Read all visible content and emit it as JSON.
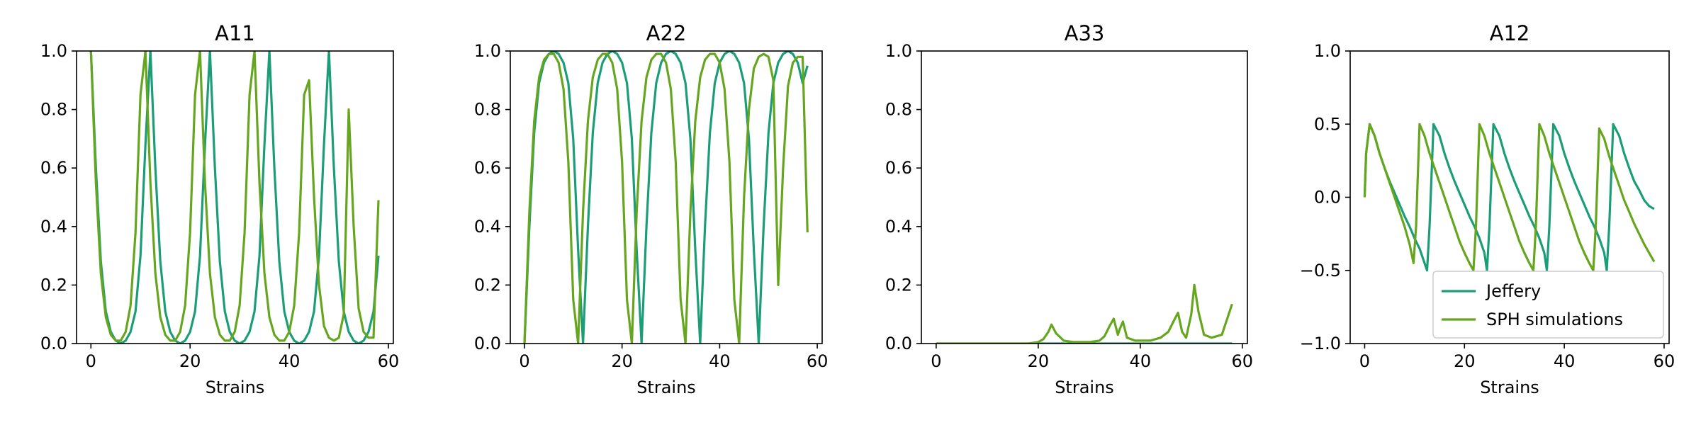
{
  "chart_data": [
    {
      "type": "line",
      "title": "A11",
      "xlabel": "Strains",
      "ylabel": "",
      "xlim": [
        -2.9,
        61
      ],
      "ylim": [
        0,
        1.0
      ],
      "xticks": [
        "0",
        "20",
        "40",
        "60"
      ],
      "yticks": [
        "0.0",
        "0.2",
        "0.4",
        "0.6",
        "0.8",
        "1.0"
      ],
      "series": [
        {
          "name": "Jeffery",
          "color": "#1b9e77",
          "x": [
            0,
            1,
            2,
            3,
            4,
            5,
            6,
            7,
            8,
            9,
            10,
            11,
            12,
            13,
            14,
            15,
            16,
            17,
            18,
            19,
            20,
            21,
            22,
            23,
            24,
            25,
            26,
            27,
            28,
            29,
            30,
            31,
            32,
            33,
            34,
            35,
            36,
            37,
            38,
            39,
            40,
            41,
            42,
            43,
            44,
            45,
            46,
            47,
            48,
            49,
            50,
            51,
            52,
            53,
            54,
            55,
            56,
            57,
            58
          ],
          "y": [
            1.0,
            0.6,
            0.28,
            0.11,
            0.04,
            0.01,
            0.0,
            0.01,
            0.04,
            0.11,
            0.3,
            0.68,
            1.0,
            0.6,
            0.28,
            0.11,
            0.04,
            0.01,
            0.0,
            0.01,
            0.04,
            0.11,
            0.3,
            0.68,
            1.0,
            0.6,
            0.28,
            0.11,
            0.04,
            0.01,
            0.0,
            0.01,
            0.04,
            0.11,
            0.3,
            0.68,
            1.0,
            0.6,
            0.28,
            0.11,
            0.04,
            0.01,
            0.0,
            0.01,
            0.04,
            0.11,
            0.3,
            0.68,
            1.0,
            0.6,
            0.28,
            0.11,
            0.04,
            0.01,
            0.0,
            0.01,
            0.04,
            0.11,
            0.3
          ]
        },
        {
          "name": "SPH simulations",
          "color": "#66a61e",
          "x": [
            0,
            1,
            2,
            3,
            4,
            5,
            6,
            7,
            8,
            9,
            10,
            11,
            12,
            13,
            14,
            15,
            16,
            17,
            18,
            19,
            20,
            21,
            22,
            23,
            24,
            25,
            26,
            27,
            28,
            29,
            30,
            31,
            32,
            33,
            34,
            35,
            36,
            37,
            38,
            39,
            40,
            41,
            42,
            43,
            44,
            45,
            46,
            47,
            48,
            49,
            50,
            51,
            52,
            53,
            54,
            55,
            56,
            57,
            58
          ],
          "y": [
            1.0,
            0.55,
            0.24,
            0.09,
            0.03,
            0.01,
            0.01,
            0.04,
            0.13,
            0.38,
            0.85,
            1.0,
            0.55,
            0.24,
            0.09,
            0.03,
            0.01,
            0.01,
            0.04,
            0.13,
            0.38,
            0.85,
            1.0,
            0.55,
            0.24,
            0.09,
            0.03,
            0.01,
            0.01,
            0.04,
            0.13,
            0.38,
            0.85,
            1.0,
            0.55,
            0.24,
            0.09,
            0.03,
            0.01,
            0.01,
            0.04,
            0.13,
            0.38,
            0.85,
            0.9,
            0.5,
            0.2,
            0.06,
            0.02,
            0.01,
            0.02,
            0.1,
            0.8,
            0.4,
            0.12,
            0.04,
            0.02,
            0.02,
            0.49
          ]
        }
      ]
    },
    {
      "type": "line",
      "title": "A22",
      "xlabel": "Strains",
      "ylabel": "",
      "xlim": [
        -2.9,
        61
      ],
      "ylim": [
        0,
        1.0
      ],
      "xticks": [
        "0",
        "20",
        "40",
        "60"
      ],
      "yticks": [
        "0.0",
        "0.2",
        "0.4",
        "0.6",
        "0.8",
        "1.0"
      ],
      "series": [
        {
          "name": "Jeffery",
          "color": "#1b9e77",
          "x": [
            0,
            1,
            2,
            3,
            4,
            5,
            6,
            7,
            8,
            9,
            10,
            11,
            12,
            13,
            14,
            15,
            16,
            17,
            18,
            19,
            20,
            21,
            22,
            23,
            24,
            25,
            26,
            27,
            28,
            29,
            30,
            31,
            32,
            33,
            34,
            35,
            36,
            37,
            38,
            39,
            40,
            41,
            42,
            43,
            44,
            45,
            46,
            47,
            48,
            49,
            50,
            51,
            52,
            53,
            54,
            55,
            56,
            57,
            58
          ],
          "y": [
            0.0,
            0.4,
            0.72,
            0.89,
            0.96,
            0.99,
            1.0,
            0.99,
            0.96,
            0.89,
            0.7,
            0.32,
            0.0,
            0.4,
            0.72,
            0.89,
            0.96,
            0.99,
            1.0,
            0.99,
            0.96,
            0.89,
            0.7,
            0.32,
            0.0,
            0.4,
            0.72,
            0.89,
            0.96,
            0.99,
            1.0,
            0.99,
            0.96,
            0.89,
            0.7,
            0.32,
            0.0,
            0.4,
            0.72,
            0.89,
            0.96,
            0.99,
            1.0,
            0.99,
            0.96,
            0.89,
            0.7,
            0.32,
            0.0,
            0.4,
            0.72,
            0.89,
            0.96,
            0.99,
            1.0,
            0.99,
            0.96,
            0.89,
            0.95
          ]
        },
        {
          "name": "SPH simulations",
          "color": "#66a61e",
          "x": [
            0,
            1,
            2,
            3,
            4,
            5,
            6,
            7,
            8,
            9,
            10,
            11,
            12,
            13,
            14,
            15,
            16,
            17,
            18,
            19,
            20,
            21,
            22,
            23,
            24,
            25,
            26,
            27,
            28,
            29,
            30,
            31,
            32,
            33,
            34,
            35,
            36,
            37,
            38,
            39,
            40,
            41,
            42,
            43,
            44,
            45,
            46,
            47,
            48,
            49,
            50,
            51,
            52,
            53,
            54,
            55,
            56,
            57,
            58
          ],
          "y": [
            0.0,
            0.45,
            0.76,
            0.91,
            0.97,
            0.99,
            0.99,
            0.96,
            0.87,
            0.62,
            0.15,
            0.0,
            0.45,
            0.76,
            0.91,
            0.97,
            0.99,
            0.99,
            0.96,
            0.87,
            0.62,
            0.15,
            0.0,
            0.45,
            0.76,
            0.91,
            0.97,
            0.99,
            0.99,
            0.96,
            0.87,
            0.62,
            0.15,
            0.0,
            0.45,
            0.76,
            0.91,
            0.97,
            0.99,
            0.99,
            0.96,
            0.87,
            0.62,
            0.15,
            0.0,
            0.5,
            0.8,
            0.94,
            0.98,
            0.99,
            0.98,
            0.9,
            0.2,
            0.6,
            0.88,
            0.96,
            0.98,
            0.98,
            0.38
          ]
        }
      ]
    },
    {
      "type": "line",
      "title": "A33",
      "xlabel": "Strains",
      "ylabel": "",
      "xlim": [
        -2.9,
        61
      ],
      "ylim": [
        0,
        1.0
      ],
      "xticks": [
        "0",
        "20",
        "40",
        "60"
      ],
      "yticks": [
        "0.0",
        "0.2",
        "0.4",
        "0.6",
        "0.8",
        "1.0"
      ],
      "series": [
        {
          "name": "Jeffery",
          "color": "#1b9e77",
          "x": [
            0,
            10,
            20,
            30,
            40,
            50,
            58
          ],
          "y": [
            0.0,
            0.0,
            0.0,
            0.0,
            0.0,
            0.0,
            0.0
          ]
        },
        {
          "name": "SPH simulations",
          "color": "#66a61e",
          "x": [
            0,
            10,
            18,
            20,
            21,
            22,
            22.6,
            23.5,
            25,
            27,
            30,
            32,
            33,
            34,
            34.8,
            35.6,
            36,
            36.6,
            37.4,
            39,
            42,
            44,
            45.5,
            46.5,
            47.4,
            48.2,
            49,
            50,
            50.6,
            51.4,
            52.5,
            54,
            56,
            58
          ],
          "y": [
            0.0,
            0.0,
            0.0,
            0.005,
            0.015,
            0.04,
            0.065,
            0.035,
            0.01,
            0.005,
            0.005,
            0.01,
            0.025,
            0.06,
            0.085,
            0.03,
            0.05,
            0.075,
            0.02,
            0.01,
            0.01,
            0.02,
            0.04,
            0.075,
            0.105,
            0.04,
            0.02,
            0.1,
            0.2,
            0.11,
            0.03,
            0.02,
            0.03,
            0.135
          ]
        }
      ]
    },
    {
      "type": "line",
      "title": "A12",
      "xlabel": "Strains",
      "ylabel": "",
      "xlim": [
        -2.9,
        61
      ],
      "ylim": [
        -1.0,
        1.0
      ],
      "xticks": [
        "0",
        "20",
        "40",
        "60"
      ],
      "yticks": [
        "−1.0",
        "−0.5",
        "0.0",
        "0.5",
        "1.0"
      ],
      "legend": {
        "position": "lower-right",
        "entries": [
          "Jeffery",
          "SPH simulations"
        ]
      },
      "series": [
        {
          "name": "Jeffery",
          "color": "#1b9e77",
          "x": [
            0,
            0.3,
            1,
            2,
            3,
            4,
            5,
            6,
            7,
            8,
            9,
            10,
            11,
            12,
            12.5,
            13,
            13.8,
            15,
            16,
            17,
            18,
            19,
            20,
            21,
            22,
            23,
            24,
            24.5,
            25,
            25.8,
            27,
            28,
            29,
            30,
            31,
            32,
            33,
            34,
            35,
            36,
            36.5,
            37,
            37.8,
            39,
            40,
            41,
            42,
            43,
            44,
            45,
            46,
            47,
            48,
            48.5,
            49,
            49.8,
            51,
            52,
            53,
            54,
            55,
            56,
            57,
            58
          ],
          "y": [
            0.0,
            0.3,
            0.5,
            0.42,
            0.3,
            0.2,
            0.11,
            0.03,
            -0.05,
            -0.13,
            -0.2,
            -0.28,
            -0.35,
            -0.45,
            -0.5,
            -0.2,
            0.5,
            0.42,
            0.3,
            0.2,
            0.11,
            0.03,
            -0.05,
            -0.13,
            -0.2,
            -0.28,
            -0.38,
            -0.5,
            -0.2,
            0.5,
            0.42,
            0.3,
            0.2,
            0.11,
            0.03,
            -0.05,
            -0.13,
            -0.2,
            -0.28,
            -0.38,
            -0.5,
            -0.2,
            0.5,
            0.42,
            0.3,
            0.2,
            0.11,
            0.03,
            -0.05,
            -0.13,
            -0.2,
            -0.28,
            -0.38,
            -0.5,
            -0.2,
            0.5,
            0.42,
            0.3,
            0.2,
            0.11,
            0.05,
            -0.02,
            -0.06,
            -0.08
          ]
        },
        {
          "name": "SPH simulations",
          "color": "#66a61e",
          "x": [
            0,
            0.3,
            1,
            2,
            3,
            4,
            5,
            6,
            7,
            8,
            9,
            9.8,
            10.3,
            11,
            12,
            13,
            14,
            15,
            16,
            17,
            18,
            19,
            20,
            21,
            21.8,
            22.3,
            23,
            24,
            25,
            26,
            27,
            28,
            29,
            30,
            31,
            32,
            33,
            33.8,
            34.3,
            35,
            36,
            37,
            38,
            39,
            40,
            41,
            42,
            43,
            44,
            45,
            45.8,
            46.3,
            47,
            48,
            49,
            50,
            51,
            52,
            53,
            54,
            55,
            56,
            57,
            58
          ],
          "y": [
            0.0,
            0.3,
            0.5,
            0.42,
            0.3,
            0.2,
            0.1,
            0.0,
            -0.1,
            -0.2,
            -0.32,
            -0.45,
            -0.2,
            0.5,
            0.42,
            0.3,
            0.2,
            0.1,
            0.0,
            -0.1,
            -0.2,
            -0.3,
            -0.38,
            -0.45,
            -0.5,
            -0.2,
            0.5,
            0.42,
            0.3,
            0.2,
            0.1,
            0.0,
            -0.1,
            -0.2,
            -0.3,
            -0.38,
            -0.45,
            -0.5,
            -0.2,
            0.5,
            0.42,
            0.3,
            0.2,
            0.1,
            0.0,
            -0.1,
            -0.2,
            -0.3,
            -0.38,
            -0.45,
            -0.5,
            -0.2,
            0.47,
            0.4,
            0.28,
            0.18,
            0.08,
            -0.02,
            -0.1,
            -0.18,
            -0.25,
            -0.32,
            -0.38,
            -0.44
          ]
        }
      ]
    }
  ]
}
